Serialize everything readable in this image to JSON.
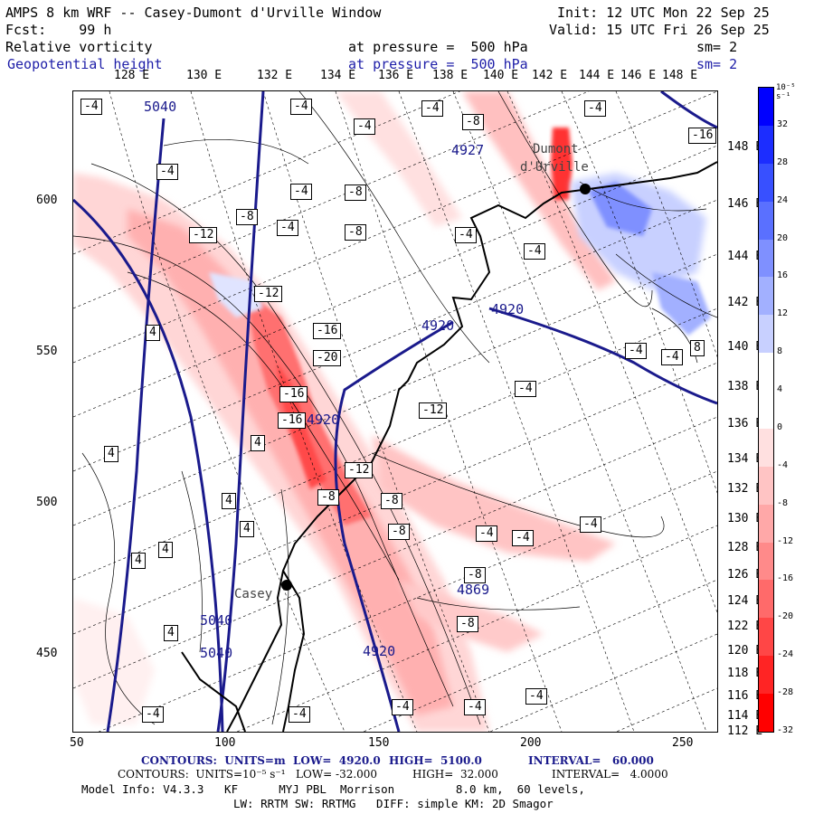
{
  "header": {
    "line1_left": "AMPS 8 km WRF -- Casey-Dumont d'Urville Window",
    "line1_right": "Init: 12 UTC Mon 22 Sep 25",
    "line2_left": "Fcst:    99 h",
    "line2_right": "Valid: 15 UTC Fri 26 Sep 25",
    "line3_left": "Relative vorticity",
    "line3_mid": "at pressure =  500 hPa",
    "line3_right": "sm= 2",
    "line4_left": "Geopotential height",
    "line4_mid": "at pressure =  500 hPa",
    "line4_right": "sm= 2"
  },
  "top_lon_labels": [
    "128 E",
    "130 E",
    "132 E",
    "134 E",
    "136 E",
    "138 E",
    "140 E",
    "142 E",
    "144 E",
    "146 E",
    "148 E"
  ],
  "y_ticks": [
    "600",
    "550",
    "500",
    "450"
  ],
  "x_ticks": [
    "50",
    "100",
    "150",
    "200",
    "250"
  ],
  "right_lat_labels": [
    "148 E",
    "146 E",
    "144 E",
    "142 E",
    "140 E",
    "138 E",
    "136 E",
    "134 E",
    "132 E",
    "130 E",
    "128 E",
    "126 E",
    "124 E",
    "122 E",
    "120 E",
    "118 E",
    "116 E",
    "114 E",
    "112 E"
  ],
  "colorbar": {
    "top_label": "10⁻⁵ s⁻¹",
    "labels": [
      "32",
      "28",
      "24",
      "20",
      "16",
      "12",
      "8",
      "4",
      "0",
      "-4",
      "-8",
      "-12",
      "-16",
      "-20",
      "-24",
      "-28",
      "-32"
    ],
    "colors": [
      "#0000ff",
      "#1c2dff",
      "#3850ff",
      "#5a70ff",
      "#7f90ff",
      "#a2b0ff",
      "#c8d0ff",
      "#ffffff",
      "#ffffff",
      "#ffe0e0",
      "#ffc4c4",
      "#ffa8a8",
      "#ff8a8a",
      "#ff6a6a",
      "#ff4646",
      "#ff2424",
      "#ff0000"
    ]
  },
  "map": {
    "stations": [
      "Casey",
      "Dumont",
      "d'Urville"
    ],
    "geopotential_labels": [
      "5040",
      "5040",
      "5040",
      "4920",
      "4920",
      "4920",
      "4920",
      "4869",
      "4927"
    ],
    "vort_labels": [
      "-4",
      "-4",
      "-4",
      "-4",
      "-8",
      "-4",
      "-8",
      "-4",
      "-16",
      "-4",
      "-4",
      "-8",
      "-4",
      "-4",
      "-8",
      "-12",
      "-12",
      "-16",
      "-20",
      "-16",
      "-16",
      "-12",
      "-12",
      "-8",
      "-8",
      "-8",
      "-4",
      "-4",
      "-4",
      "-8",
      "-8",
      "-4",
      "-4",
      "-4",
      "4",
      "4",
      "4",
      "4",
      "4",
      "4",
      "4",
      "4",
      "-4",
      "-4",
      "-4",
      "-4",
      "-4",
      "8"
    ]
  },
  "footer": {
    "line1_a": "CONTOURS:  UNITS=m  LOW=  4920.0",
    "line1_b": "HIGH=  5100.0",
    "line1_c": "INTERVAL=   60.000",
    "line2_a": "CONTOURS:  UNITS=10⁻⁵ s⁻¹   LOW= -32.000",
    "line2_b": "HIGH=  32.000",
    "line2_c": "INTERVAL=   4.0000",
    "line3": "Model Info: V4.3.3   KF      MYJ PBL  Morrison         8.0 km,  60 levels,",
    "line4": "LW: RRTM SW: RRTMG   DIFF: simple KM: 2D Smagor"
  },
  "colors": {
    "geo": "#1a1a8c",
    "frame": "#000000"
  }
}
